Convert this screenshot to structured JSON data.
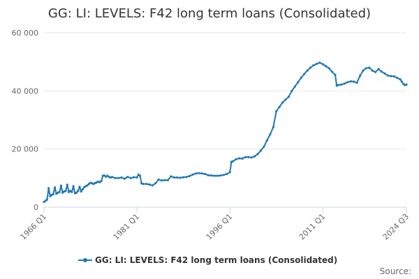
{
  "chart_data": {
    "type": "line",
    "title": "GG: LI: LEVELS: F42 long term loans (Consolidated)",
    "xlabel": "",
    "ylabel": "",
    "ylim": [
      0,
      60000
    ],
    "y_ticks": [
      0,
      20000,
      40000,
      60000
    ],
    "y_tick_labels": [
      "0",
      "20 000",
      "40 000",
      "60 000"
    ],
    "x_range": [
      1966.0,
      2024.5
    ],
    "x_ticks": [
      {
        "x": 1966.0,
        "label": "1966 Q1"
      },
      {
        "x": 1981.0,
        "label": "1981 Q1"
      },
      {
        "x": 1996.0,
        "label": "1996 Q1"
      },
      {
        "x": 2011.0,
        "label": "2011 Q1"
      },
      {
        "x": 2024.5,
        "label": "2024 Q3"
      }
    ],
    "grid": true,
    "legend": "bottom-center",
    "series": [
      {
        "name": "GG: LI: LEVELS: F42 long term loans (Consolidated)",
        "color": "#1f77b4",
        "points": [
          [
            1966.0,
            1800
          ],
          [
            1966.25,
            2200
          ],
          [
            1966.5,
            2600
          ],
          [
            1966.75,
            6500
          ],
          [
            1967.0,
            3800
          ],
          [
            1967.25,
            4200
          ],
          [
            1967.5,
            4500
          ],
          [
            1967.75,
            6800
          ],
          [
            1968.0,
            4600
          ],
          [
            1968.25,
            5000
          ],
          [
            1968.5,
            5200
          ],
          [
            1968.75,
            7400
          ],
          [
            1969.0,
            5000
          ],
          [
            1969.25,
            5400
          ],
          [
            1969.5,
            5600
          ],
          [
            1969.75,
            7700
          ],
          [
            1970.0,
            5200
          ],
          [
            1970.25,
            5600
          ],
          [
            1970.5,
            5200
          ],
          [
            1970.75,
            7200
          ],
          [
            1971.0,
            4800
          ],
          [
            1971.25,
            5000
          ],
          [
            1971.5,
            5600
          ],
          [
            1971.75,
            7000
          ],
          [
            1972.0,
            5400
          ],
          [
            1972.25,
            6200
          ],
          [
            1972.5,
            6900
          ],
          [
            1972.75,
            7200
          ],
          [
            1973.0,
            7500
          ],
          [
            1973.25,
            8000
          ],
          [
            1973.5,
            8400
          ],
          [
            1973.75,
            8200
          ],
          [
            1974.0,
            8000
          ],
          [
            1974.25,
            8300
          ],
          [
            1974.5,
            8500
          ],
          [
            1974.75,
            8800
          ],
          [
            1975.0,
            8600
          ],
          [
            1975.25,
            9000
          ],
          [
            1975.5,
            10800
          ],
          [
            1975.75,
            10900
          ],
          [
            1976.0,
            10500
          ],
          [
            1976.25,
            10800
          ],
          [
            1976.5,
            10400
          ],
          [
            1976.75,
            10200
          ],
          [
            1977.0,
            10400
          ],
          [
            1977.5,
            10000
          ],
          [
            1978.0,
            10000
          ],
          [
            1978.5,
            10200
          ],
          [
            1979.0,
            9800
          ],
          [
            1979.5,
            10400
          ],
          [
            1980.0,
            10000
          ],
          [
            1980.5,
            10300
          ],
          [
            1981.0,
            10200
          ],
          [
            1981.25,
            11200
          ],
          [
            1981.5,
            10800
          ],
          [
            1981.75,
            8200
          ],
          [
            1982.0,
            8000
          ],
          [
            1982.5,
            8000
          ],
          [
            1983.0,
            7800
          ],
          [
            1983.5,
            7500
          ],
          [
            1984.0,
            8200
          ],
          [
            1984.5,
            9500
          ],
          [
            1985.0,
            9200
          ],
          [
            1985.5,
            9300
          ],
          [
            1986.0,
            9300
          ],
          [
            1986.5,
            10600
          ],
          [
            1987.0,
            10200
          ],
          [
            1987.5,
            10200
          ],
          [
            1988.0,
            10100
          ],
          [
            1988.5,
            10300
          ],
          [
            1989.0,
            10400
          ],
          [
            1989.5,
            10700
          ],
          [
            1990.0,
            11200
          ],
          [
            1990.5,
            11600
          ],
          [
            1991.0,
            11700
          ],
          [
            1991.5,
            11600
          ],
          [
            1992.0,
            11400
          ],
          [
            1992.5,
            11000
          ],
          [
            1993.0,
            10900
          ],
          [
            1993.5,
            10800
          ],
          [
            1994.0,
            10800
          ],
          [
            1994.5,
            10900
          ],
          [
            1995.0,
            11100
          ],
          [
            1995.5,
            11400
          ],
          [
            1996.0,
            12000
          ],
          [
            1996.25,
            15600
          ],
          [
            1996.5,
            15800
          ],
          [
            1997.0,
            16500
          ],
          [
            1997.5,
            16800
          ],
          [
            1998.0,
            16700
          ],
          [
            1998.5,
            17200
          ],
          [
            1999.0,
            17200
          ],
          [
            1999.5,
            17100
          ],
          [
            2000.0,
            17500
          ],
          [
            2000.5,
            18300
          ],
          [
            2001.0,
            19500
          ],
          [
            2001.5,
            20800
          ],
          [
            2002.0,
            23000
          ],
          [
            2002.5,
            25000
          ],
          [
            2003.0,
            27500
          ],
          [
            2003.5,
            33000
          ],
          [
            2004.0,
            34500
          ],
          [
            2004.5,
            36000
          ],
          [
            2005.0,
            37000
          ],
          [
            2005.5,
            38000
          ],
          [
            2006.0,
            40000
          ],
          [
            2006.5,
            41500
          ],
          [
            2007.0,
            43000
          ],
          [
            2007.5,
            44500
          ],
          [
            2008.0,
            45800
          ],
          [
            2008.5,
            47000
          ],
          [
            2009.0,
            48000
          ],
          [
            2009.5,
            48800
          ],
          [
            2010.0,
            49300
          ],
          [
            2010.5,
            49700
          ],
          [
            2011.0,
            49200
          ],
          [
            2011.5,
            48500
          ],
          [
            2012.0,
            47800
          ],
          [
            2012.5,
            46600
          ],
          [
            2013.0,
            45500
          ],
          [
            2013.25,
            41800
          ],
          [
            2013.5,
            42000
          ],
          [
            2014.0,
            42200
          ],
          [
            2014.5,
            42500
          ],
          [
            2015.0,
            43000
          ],
          [
            2015.5,
            43300
          ],
          [
            2016.0,
            43200
          ],
          [
            2016.5,
            42800
          ],
          [
            2017.0,
            45200
          ],
          [
            2017.5,
            47000
          ],
          [
            2018.0,
            47800
          ],
          [
            2018.5,
            48000
          ],
          [
            2019.0,
            47000
          ],
          [
            2019.5,
            46500
          ],
          [
            2020.0,
            47500
          ],
          [
            2020.5,
            46600
          ],
          [
            2021.0,
            46000
          ],
          [
            2021.5,
            45300
          ],
          [
            2022.0,
            45100
          ],
          [
            2022.5,
            45000
          ],
          [
            2023.0,
            44500
          ],
          [
            2023.5,
            44000
          ],
          [
            2023.75,
            43200
          ],
          [
            2024.0,
            42400
          ],
          [
            2024.25,
            42000
          ],
          [
            2024.5,
            42200
          ]
        ]
      }
    ]
  },
  "legend": {
    "label": "GG: LI: LEVELS: F42 long term loans (Consolidated)"
  },
  "credits": {
    "text": "Source:"
  }
}
